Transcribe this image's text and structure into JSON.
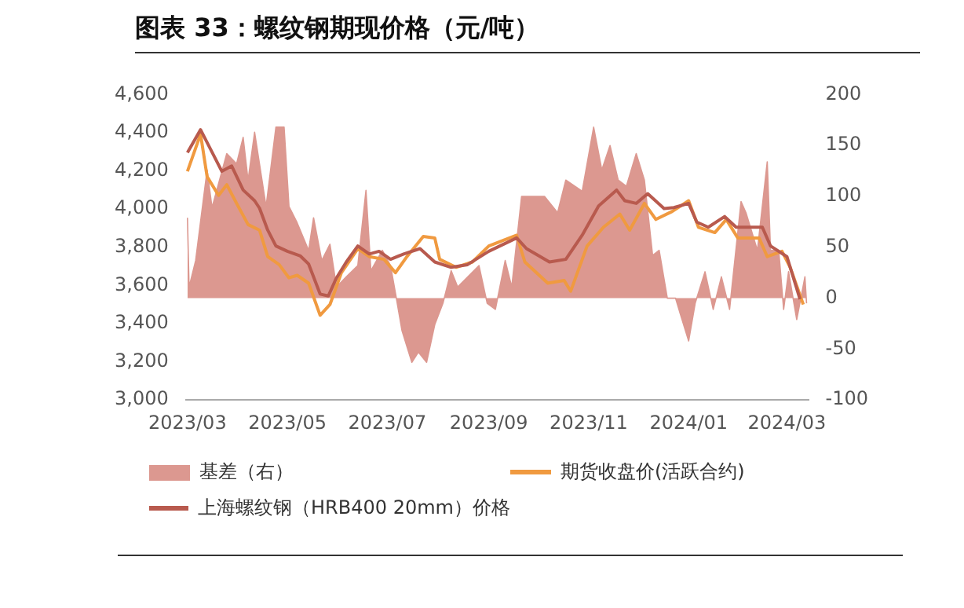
{
  "chart_data": {
    "type": "line",
    "title": "图表 33：螺纹钢期现价格（元/吨）",
    "xlim": [
      "2023-02-28",
      "2024-03-14"
    ],
    "xticks": [
      {
        "value": "2023-03-01",
        "label": "2023/03"
      },
      {
        "value": "2023-05-01",
        "label": "2023/05"
      },
      {
        "value": "2023-07-01",
        "label": "2023/07"
      },
      {
        "value": "2023-09-01",
        "label": "2023/09"
      },
      {
        "value": "2023-11-01",
        "label": "2023/11"
      },
      {
        "value": "2024-01-01",
        "label": "2024/01"
      },
      {
        "value": "2024-03-01",
        "label": "2024/03"
      }
    ],
    "ylim": [
      3000,
      4600
    ],
    "yticks": [
      {
        "value": 3000,
        "label": "3,000"
      },
      {
        "value": 3200,
        "label": "3,200"
      },
      {
        "value": 3400,
        "label": "3,400"
      },
      {
        "value": 3600,
        "label": "3,600"
      },
      {
        "value": 3800,
        "label": "3,800"
      },
      {
        "value": 4000,
        "label": "4,000"
      },
      {
        "value": 4200,
        "label": "4,200"
      },
      {
        "value": 4400,
        "label": "4,400"
      },
      {
        "value": 4600,
        "label": "4,600"
      }
    ],
    "y2lim": [
      -100,
      200
    ],
    "y2ticks": [
      -100,
      -50,
      0,
      50,
      100,
      150,
      200
    ],
    "grid": false,
    "legend": "bottom",
    "marker": "none",
    "line_style": "solid",
    "series": [
      {
        "name": "基差（右）",
        "type": "area",
        "axis": "y2",
        "color": "#dc9890",
        "x": [
          "2023-03-01",
          "2023-03-02",
          "2023-03-06",
          "2023-03-13",
          "2023-03-16",
          "2023-03-25",
          "2023-03-31",
          "2023-04-04",
          "2023-04-07",
          "2023-04-11",
          "2023-04-18",
          "2023-04-24",
          "2023-04-29",
          "2023-05-02",
          "2023-05-07",
          "2023-05-14",
          "2023-05-17",
          "2023-05-22",
          "2023-05-27",
          "2023-05-31",
          "2023-06-06",
          "2023-06-13",
          "2023-06-18",
          "2023-06-21",
          "2023-06-28",
          "2023-07-03",
          "2023-07-06",
          "2023-07-10",
          "2023-07-16",
          "2023-07-20",
          "2023-07-25",
          "2023-07-30",
          "2023-08-04",
          "2023-08-09",
          "2023-08-13",
          "2023-08-26",
          "2023-08-31",
          "2023-09-05",
          "2023-09-11",
          "2023-09-15",
          "2023-09-21",
          "2023-10-05",
          "2023-10-13",
          "2023-10-18",
          "2023-10-28",
          "2023-11-04",
          "2023-11-09",
          "2023-11-14",
          "2023-11-19",
          "2023-11-24",
          "2023-11-30",
          "2023-12-05",
          "2023-12-10",
          "2023-12-14",
          "2023-12-19",
          "2023-12-24",
          "2023-12-27",
          "2024-01-01",
          "2024-01-05",
          "2024-01-11",
          "2024-01-16",
          "2024-01-21",
          "2024-01-26",
          "2024-02-02",
          "2024-02-05",
          "2024-02-12",
          "2024-02-18",
          "2024-02-20",
          "2024-02-25",
          "2024-02-28",
          "2024-03-02",
          "2024-03-07",
          "2024-03-12",
          "2024-03-13"
        ],
        "values": [
          79,
          11,
          37,
          126,
          89,
          142,
          132,
          158,
          116,
          163,
          90,
          168,
          168,
          90,
          74,
          47,
          79,
          37,
          53,
          11,
          21,
          32,
          106,
          27,
          47,
          32,
          5,
          -32,
          -63,
          -53,
          -63,
          -26,
          -5,
          27,
          11,
          32,
          -5,
          -11,
          37,
          11,
          100,
          100,
          84,
          116,
          105,
          168,
          126,
          150,
          116,
          110,
          142,
          116,
          42,
          47,
          0,
          0,
          -16,
          -42,
          -5,
          26,
          -11,
          21,
          -11,
          95,
          84,
          47,
          134,
          47,
          47,
          -11,
          26,
          -21,
          21,
          -5
        ]
      },
      {
        "name": "期货收盘价(活跃合约)",
        "type": "line",
        "color": "#f09a40",
        "x": [
          "2023-03-01",
          "2023-03-09",
          "2023-03-13",
          "2023-03-20",
          "2023-03-25",
          "2023-03-31",
          "2023-04-07",
          "2023-04-14",
          "2023-04-19",
          "2023-04-26",
          "2023-05-02",
          "2023-05-07",
          "2023-05-14",
          "2023-05-21",
          "2023-05-27",
          "2023-06-03",
          "2023-06-13",
          "2023-06-20",
          "2023-06-29",
          "2023-07-06",
          "2023-07-13",
          "2023-07-23",
          "2023-07-30",
          "2023-08-02",
          "2023-08-12",
          "2023-08-22",
          "2023-09-01",
          "2023-09-18",
          "2023-09-23",
          "2023-10-07",
          "2023-10-17",
          "2023-10-21",
          "2023-10-31",
          "2023-11-10",
          "2023-11-20",
          "2023-11-26",
          "2023-12-05",
          "2023-12-12",
          "2023-12-22",
          "2024-01-01",
          "2024-01-07",
          "2024-01-17",
          "2024-01-24",
          "2024-01-31",
          "2024-02-13",
          "2024-02-18",
          "2024-02-27",
          "2024-03-03",
          "2024-03-11"
        ],
        "values": [
          4198,
          4393,
          4170,
          4072,
          4128,
          4030,
          3919,
          3890,
          3751,
          3709,
          3640,
          3653,
          3612,
          3444,
          3500,
          3667,
          3793,
          3751,
          3737,
          3667,
          3751,
          3857,
          3849,
          3737,
          3695,
          3723,
          3807,
          3863,
          3723,
          3612,
          3626,
          3570,
          3807,
          3905,
          3974,
          3890,
          4030,
          3946,
          3988,
          4044,
          3905,
          3877,
          3946,
          3849,
          3849,
          3751,
          3779,
          3695,
          3500
        ]
      },
      {
        "name": "上海螺纹钢（HRB400 20mm）价格",
        "type": "line",
        "color": "#b85a4e",
        "x": [
          "2023-03-01",
          "2023-03-09",
          "2023-03-22",
          "2023-03-28",
          "2023-04-04",
          "2023-04-11",
          "2023-04-14",
          "2023-04-19",
          "2023-04-24",
          "2023-05-01",
          "2023-05-09",
          "2023-05-14",
          "2023-05-21",
          "2023-05-26",
          "2023-05-31",
          "2023-06-06",
          "2023-06-13",
          "2023-06-20",
          "2023-06-26",
          "2023-07-03",
          "2023-07-11",
          "2023-07-21",
          "2023-07-30",
          "2023-08-09",
          "2023-08-19",
          "2023-09-01",
          "2023-09-18",
          "2023-09-24",
          "2023-10-08",
          "2023-10-18",
          "2023-10-28",
          "2023-11-07",
          "2023-11-18",
          "2023-11-23",
          "2023-11-30",
          "2023-12-07",
          "2023-12-17",
          "2023-12-23",
          "2024-01-01",
          "2024-01-06",
          "2024-01-13",
          "2024-01-23",
          "2024-01-30",
          "2024-02-15",
          "2024-02-20",
          "2024-03-01",
          "2024-03-09"
        ],
        "values": [
          4296,
          4416,
          4198,
          4226,
          4100,
          4044,
          4005,
          3890,
          3807,
          3779,
          3754,
          3712,
          3555,
          3545,
          3640,
          3723,
          3807,
          3765,
          3779,
          3737,
          3765,
          3793,
          3723,
          3695,
          3709,
          3779,
          3849,
          3793,
          3723,
          3737,
          3863,
          4016,
          4100,
          4044,
          4030,
          4081,
          4003,
          4008,
          4030,
          3932,
          3905,
          3961,
          3905,
          3905,
          3807,
          3751,
          3528
        ]
      }
    ]
  }
}
